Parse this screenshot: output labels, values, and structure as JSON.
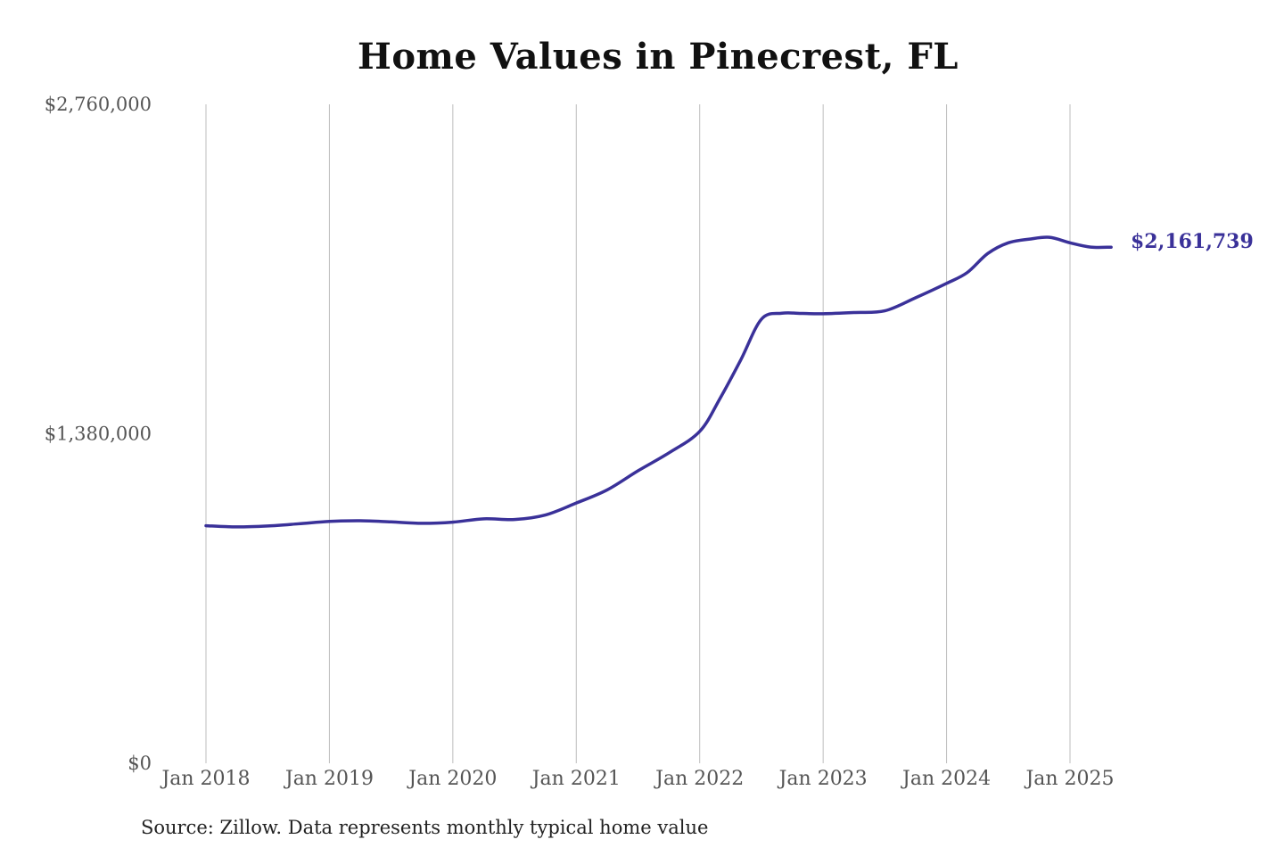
{
  "chart_data": {
    "type": "line",
    "title": "Home Values in Pinecrest, FL",
    "xlabel": "",
    "ylabel": "",
    "ylim": [
      0,
      2760000
    ],
    "y_ticks": [
      {
        "value": 0,
        "label": "$0"
      },
      {
        "value": 1380000,
        "label": "$1,380,000"
      },
      {
        "value": 2760000,
        "label": "$2,760,000"
      }
    ],
    "x_range": [
      "2018-01",
      "2025-05"
    ],
    "x_ticks": [
      {
        "date": "2018-01",
        "label": "Jan 2018"
      },
      {
        "date": "2019-01",
        "label": "Jan 2019"
      },
      {
        "date": "2020-01",
        "label": "Jan 2020"
      },
      {
        "date": "2021-01",
        "label": "Jan 2021"
      },
      {
        "date": "2022-01",
        "label": "Jan 2022"
      },
      {
        "date": "2023-01",
        "label": "Jan 2023"
      },
      {
        "date": "2024-01",
        "label": "Jan 2024"
      },
      {
        "date": "2025-01",
        "label": "Jan 2025"
      }
    ],
    "grid": "vertical",
    "line_color": "#3a3199",
    "end_label": "$2,161,739",
    "series": [
      {
        "values": [
          [
            "2018-01",
            995000
          ],
          [
            "2018-04",
            990000
          ],
          [
            "2018-07",
            994000
          ],
          [
            "2018-10",
            1003000
          ],
          [
            "2019-01",
            1013000
          ],
          [
            "2019-04",
            1016000
          ],
          [
            "2019-07",
            1011000
          ],
          [
            "2019-10",
            1005000
          ],
          [
            "2020-01",
            1010000
          ],
          [
            "2020-04",
            1024000
          ],
          [
            "2020-07",
            1021000
          ],
          [
            "2020-10",
            1040000
          ],
          [
            "2021-01",
            1090000
          ],
          [
            "2021-04",
            1145000
          ],
          [
            "2021-07",
            1225000
          ],
          [
            "2021-10",
            1300000
          ],
          [
            "2022-01",
            1390000
          ],
          [
            "2022-03",
            1530000
          ],
          [
            "2022-05",
            1690000
          ],
          [
            "2022-07",
            1860000
          ],
          [
            "2022-09",
            1885000
          ],
          [
            "2022-11",
            1884000
          ],
          [
            "2023-01",
            1883000
          ],
          [
            "2023-04",
            1888000
          ],
          [
            "2023-07",
            1895000
          ],
          [
            "2023-10",
            1950000
          ],
          [
            "2024-01",
            2010000
          ],
          [
            "2024-03",
            2055000
          ],
          [
            "2024-05",
            2135000
          ],
          [
            "2024-07",
            2180000
          ],
          [
            "2024-09",
            2195000
          ],
          [
            "2024-11",
            2203000
          ],
          [
            "2025-01",
            2180000
          ],
          [
            "2025-03",
            2162000
          ],
          [
            "2025-05",
            2161739
          ]
        ]
      }
    ]
  },
  "source_note": "Source: Zillow. Data represents monthly typical home value"
}
